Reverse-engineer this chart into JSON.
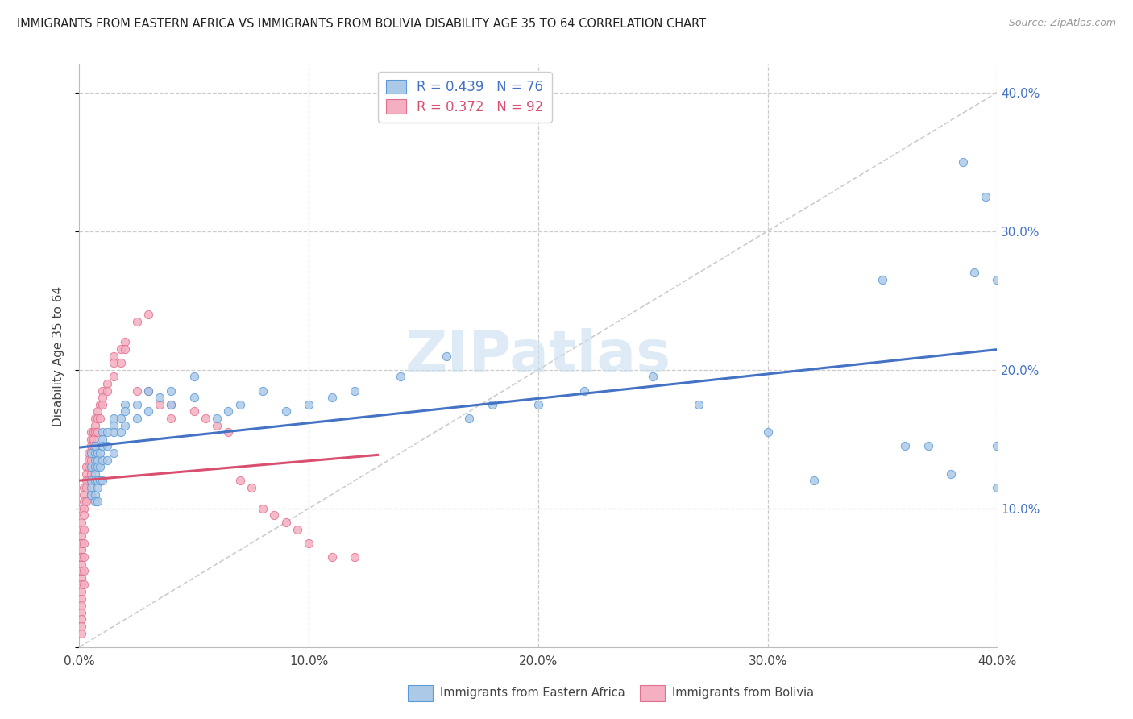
{
  "title": "IMMIGRANTS FROM EASTERN AFRICA VS IMMIGRANTS FROM BOLIVIA DISABILITY AGE 35 TO 64 CORRELATION CHART",
  "source": "Source: ZipAtlas.com",
  "ylabel": "Disability Age 35 to 64",
  "xlim": [
    0.0,
    0.4
  ],
  "ylim": [
    0.0,
    0.42
  ],
  "series1_label": "Immigrants from Eastern Africa",
  "series2_label": "Immigrants from Bolivia",
  "series1_face_color": "#adc9e8",
  "series2_face_color": "#f4afc0",
  "series1_edge_color": "#5b9bd5",
  "series2_edge_color": "#e07090",
  "series1_R": 0.439,
  "series1_N": 76,
  "series2_R": 0.372,
  "series2_N": 92,
  "series1_line_color": "#4472c4",
  "series2_line_color": "#d94f70",
  "diagonal_color": "#cccccc",
  "right_tick_color": "#4472c4",
  "watermark_text": "ZIPatlas",
  "watermark_color": "#c8dff0",
  "grid_color": "#cccccc",
  "series1_x": [
    0.005,
    0.005,
    0.005,
    0.005,
    0.005,
    0.007,
    0.007,
    0.007,
    0.007,
    0.007,
    0.007,
    0.007,
    0.007,
    0.008,
    0.008,
    0.008,
    0.008,
    0.008,
    0.008,
    0.009,
    0.009,
    0.009,
    0.01,
    0.01,
    0.01,
    0.01,
    0.01,
    0.012,
    0.012,
    0.012,
    0.015,
    0.015,
    0.015,
    0.015,
    0.018,
    0.018,
    0.02,
    0.02,
    0.02,
    0.025,
    0.025,
    0.03,
    0.03,
    0.035,
    0.04,
    0.04,
    0.05,
    0.05,
    0.06,
    0.065,
    0.07,
    0.08,
    0.09,
    0.1,
    0.11,
    0.12,
    0.14,
    0.16,
    0.17,
    0.18,
    0.2,
    0.22,
    0.25,
    0.27,
    0.3,
    0.32,
    0.35,
    0.36,
    0.37,
    0.38,
    0.385,
    0.39,
    0.395,
    0.4,
    0.4,
    0.4
  ],
  "series1_y": [
    0.13,
    0.14,
    0.12,
    0.115,
    0.11,
    0.135,
    0.14,
    0.145,
    0.13,
    0.125,
    0.12,
    0.11,
    0.105,
    0.14,
    0.135,
    0.13,
    0.12,
    0.115,
    0.105,
    0.14,
    0.13,
    0.12,
    0.155,
    0.15,
    0.145,
    0.135,
    0.12,
    0.155,
    0.145,
    0.135,
    0.165,
    0.16,
    0.155,
    0.14,
    0.165,
    0.155,
    0.175,
    0.17,
    0.16,
    0.175,
    0.165,
    0.185,
    0.17,
    0.18,
    0.185,
    0.175,
    0.195,
    0.18,
    0.165,
    0.17,
    0.175,
    0.185,
    0.17,
    0.175,
    0.18,
    0.185,
    0.195,
    0.21,
    0.165,
    0.175,
    0.175,
    0.185,
    0.195,
    0.175,
    0.155,
    0.12,
    0.265,
    0.145,
    0.145,
    0.125,
    0.35,
    0.27,
    0.325,
    0.115,
    0.145,
    0.265
  ],
  "series2_x": [
    0.001,
    0.001,
    0.001,
    0.001,
    0.001,
    0.001,
    0.001,
    0.001,
    0.001,
    0.001,
    0.001,
    0.001,
    0.001,
    0.001,
    0.001,
    0.001,
    0.001,
    0.001,
    0.001,
    0.001,
    0.001,
    0.002,
    0.002,
    0.002,
    0.002,
    0.002,
    0.002,
    0.002,
    0.002,
    0.002,
    0.002,
    0.003,
    0.003,
    0.003,
    0.003,
    0.003,
    0.004,
    0.004,
    0.004,
    0.004,
    0.005,
    0.005,
    0.005,
    0.005,
    0.005,
    0.005,
    0.005,
    0.005,
    0.005,
    0.006,
    0.006,
    0.006,
    0.007,
    0.007,
    0.007,
    0.008,
    0.008,
    0.008,
    0.009,
    0.009,
    0.01,
    0.01,
    0.01,
    0.012,
    0.012,
    0.015,
    0.015,
    0.015,
    0.018,
    0.018,
    0.02,
    0.02,
    0.025,
    0.025,
    0.03,
    0.03,
    0.035,
    0.04,
    0.04,
    0.05,
    0.055,
    0.06,
    0.065,
    0.07,
    0.075,
    0.08,
    0.085,
    0.09,
    0.095,
    0.1,
    0.11,
    0.12
  ],
  "series2_y": [
    0.1,
    0.09,
    0.085,
    0.08,
    0.075,
    0.07,
    0.065,
    0.06,
    0.055,
    0.05,
    0.045,
    0.04,
    0.035,
    0.03,
    0.025,
    0.02,
    0.015,
    0.01,
    0.075,
    0.065,
    0.055,
    0.115,
    0.11,
    0.105,
    0.1,
    0.095,
    0.085,
    0.075,
    0.065,
    0.055,
    0.045,
    0.13,
    0.125,
    0.12,
    0.115,
    0.105,
    0.14,
    0.135,
    0.13,
    0.12,
    0.155,
    0.15,
    0.145,
    0.14,
    0.135,
    0.13,
    0.125,
    0.12,
    0.11,
    0.155,
    0.15,
    0.145,
    0.165,
    0.16,
    0.155,
    0.17,
    0.165,
    0.155,
    0.175,
    0.165,
    0.185,
    0.18,
    0.175,
    0.19,
    0.185,
    0.21,
    0.205,
    0.195,
    0.215,
    0.205,
    0.22,
    0.215,
    0.235,
    0.185,
    0.24,
    0.185,
    0.175,
    0.175,
    0.165,
    0.17,
    0.165,
    0.16,
    0.155,
    0.12,
    0.115,
    0.1,
    0.095,
    0.09,
    0.085,
    0.075,
    0.065,
    0.065
  ]
}
